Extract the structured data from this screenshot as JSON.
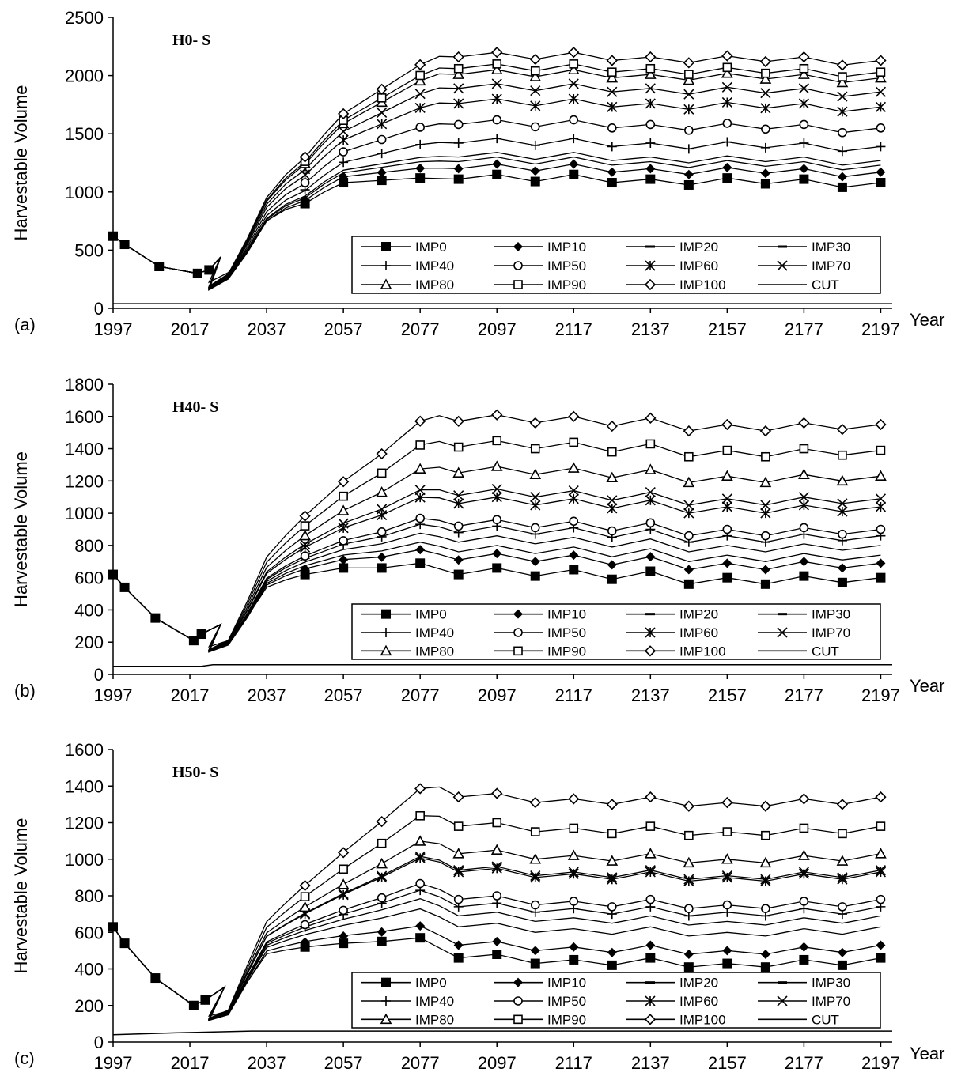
{
  "chart_data": [
    {
      "type": "line",
      "panel_label": "(a)",
      "title": "H0- S",
      "ylabel": "Harvestable Volume",
      "xlabel": "Year",
      "x_ticks": [
        "1997",
        "2017",
        "2037",
        "2057",
        "2077",
        "2097",
        "2117",
        "2137",
        "2157",
        "2177",
        "2197"
      ],
      "y_ticks": [
        "0",
        "500",
        "1000",
        "1500",
        "2000",
        "2500"
      ],
      "xlim": [
        1997,
        2200
      ],
      "ylim": [
        0,
        2500
      ],
      "legend": {
        "position": "bottom-right",
        "columns": 4
      },
      "series": [
        {
          "name": "IMP0",
          "marker": "filled-square",
          "final": 1080
        },
        {
          "name": "IMP10",
          "marker": "filled-diamond",
          "final": 1170
        },
        {
          "name": "IMP20",
          "marker": "dash",
          "final": 1230
        },
        {
          "name": "IMP30",
          "marker": "dash",
          "final": 1270
        },
        {
          "name": "IMP40",
          "marker": "plus",
          "final": 1390
        },
        {
          "name": "IMP50",
          "marker": "open-circle",
          "final": 1550
        },
        {
          "name": "IMP60",
          "marker": "asterisk",
          "final": 1730
        },
        {
          "name": "IMP70",
          "marker": "x",
          "final": 1860
        },
        {
          "name": "IMP80",
          "marker": "open-triangle",
          "final": 1980
        },
        {
          "name": "IMP90",
          "marker": "open-square",
          "final": 2030
        },
        {
          "name": "IMP100",
          "marker": "open-diamond",
          "final": 2130
        },
        {
          "name": "CUT",
          "marker": "none",
          "final": 40
        }
      ],
      "base": {
        "x": [
          1997,
          2000,
          2009,
          2019,
          2022,
          2025,
          2030
        ],
        "y": [
          620,
          550,
          360,
          300,
          330,
          440,
          600
        ]
      },
      "imp0": {
        "x": [
          2020,
          2025,
          2030,
          2035,
          2040,
          2047,
          2052,
          2057,
          2067,
          2077,
          2087,
          2097,
          2107,
          2117,
          2127,
          2137,
          2147,
          2157,
          2167,
          2177,
          2187,
          2197
        ],
        "y": [
          200,
          260,
          380,
          700,
          830,
          900,
          1000,
          1080,
          1100,
          1120,
          1110,
          1150,
          1090,
          1150,
          1080,
          1110,
          1060,
          1120,
          1070,
          1110,
          1040,
          1080
        ]
      },
      "cut": {
        "x": [
          1997,
          2200
        ],
        "y": [
          40,
          40
        ]
      }
    },
    {
      "type": "line",
      "panel_label": "(b)",
      "title": "H40- S",
      "ylabel": "Harvestable Volume",
      "xlabel": "Year",
      "x_ticks": [
        "1997",
        "2017",
        "2037",
        "2057",
        "2077",
        "2097",
        "2117",
        "2137",
        "2157",
        "2177",
        "2197"
      ],
      "y_ticks": [
        "0",
        "200",
        "400",
        "600",
        "800",
        "1000",
        "1200",
        "1400",
        "1600",
        "1800"
      ],
      "xlim": [
        1997,
        2200
      ],
      "ylim": [
        0,
        1800
      ],
      "legend": {
        "position": "bottom-right",
        "columns": 4
      },
      "series": [
        {
          "name": "IMP0",
          "marker": "filled-square",
          "final": 600
        },
        {
          "name": "IMP10",
          "marker": "filled-diamond",
          "final": 690
        },
        {
          "name": "IMP20",
          "marker": "dash",
          "final": 740
        },
        {
          "name": "IMP30",
          "marker": "dash",
          "final": 800
        },
        {
          "name": "IMP40",
          "marker": "plus",
          "final": 860
        },
        {
          "name": "IMP50",
          "marker": "open-circle",
          "final": 900
        },
        {
          "name": "IMP60",
          "marker": "asterisk",
          "final": 1040
        },
        {
          "name": "IMP70",
          "marker": "x",
          "final": 1090
        },
        {
          "name": "IMP80",
          "marker": "open-triangle",
          "final": 1230
        },
        {
          "name": "IMP90",
          "marker": "open-square",
          "final": 1390
        },
        {
          "name": "IMP100",
          "marker": "open-diamond",
          "final": 1550
        },
        {
          "name": "CUT",
          "marker": "none",
          "final": 60
        }
      ],
      "base": {
        "x": [
          1997,
          2000,
          2008,
          2018,
          2020,
          2025,
          2030
        ],
        "y": [
          620,
          540,
          350,
          210,
          250,
          310,
          430
        ]
      },
      "imp0": {
        "x": [
          2020,
          2025,
          2030,
          2034,
          2038,
          2047,
          2057,
          2067,
          2077,
          2087,
          2097,
          2107,
          2117,
          2127,
          2137,
          2147,
          2157,
          2167,
          2177,
          2187,
          2197
        ],
        "y": [
          160,
          190,
          240,
          480,
          560,
          620,
          660,
          660,
          690,
          620,
          660,
          610,
          650,
          590,
          640,
          560,
          600,
          560,
          610,
          570,
          600
        ]
      },
      "cut": {
        "x": [
          1997,
          2020,
          2023,
          2200
        ],
        "y": [
          50,
          50,
          60,
          60
        ]
      }
    },
    {
      "type": "line",
      "panel_label": "(c)",
      "title": "H50- S",
      "ylabel": "Harvestable Volume",
      "xlabel": "Year",
      "x_ticks": [
        "1997",
        "2017",
        "2037",
        "2057",
        "2077",
        "2097",
        "2117",
        "2137",
        "2157",
        "2177",
        "2197"
      ],
      "y_ticks": [
        "0",
        "200",
        "400",
        "600",
        "800",
        "1000",
        "1200",
        "1400",
        "1600"
      ],
      "xlim": [
        1997,
        2200
      ],
      "ylim": [
        0,
        1600
      ],
      "legend": {
        "position": "bottom-right",
        "columns": 4
      },
      "series": [
        {
          "name": "IMP0",
          "marker": "filled-square",
          "final": 460
        },
        {
          "name": "IMP10",
          "marker": "filled-diamond",
          "final": 530
        },
        {
          "name": "IMP20",
          "marker": "dash",
          "final": 630
        },
        {
          "name": "IMP30",
          "marker": "dash",
          "final": 690
        },
        {
          "name": "IMP40",
          "marker": "plus",
          "final": 740
        },
        {
          "name": "IMP50",
          "marker": "open-circle",
          "final": 780
        },
        {
          "name": "IMP60",
          "marker": "asterisk",
          "final": 930
        },
        {
          "name": "IMP70",
          "marker": "x",
          "final": 940
        },
        {
          "name": "IMP80",
          "marker": "open-triangle",
          "final": 1030
        },
        {
          "name": "IMP90",
          "marker": "open-square",
          "final": 1180
        },
        {
          "name": "IMP100",
          "marker": "open-diamond",
          "final": 1340
        },
        {
          "name": "CUT",
          "marker": "none",
          "final": 60
        }
      ],
      "base": {
        "x": [
          1997,
          2000,
          2008,
          2018,
          2021,
          2026,
          2030
        ],
        "y": [
          630,
          540,
          350,
          200,
          230,
          300,
          420
        ]
      },
      "imp0": {
        "x": [
          2021,
          2025,
          2030,
          2034,
          2038,
          2047,
          2057,
          2067,
          2077,
          2087,
          2097,
          2107,
          2117,
          2127,
          2137,
          2147,
          2157,
          2167,
          2177,
          2187,
          2197
        ],
        "y": [
          140,
          150,
          200,
          460,
          490,
          520,
          540,
          550,
          570,
          460,
          480,
          430,
          450,
          420,
          460,
          410,
          430,
          410,
          450,
          420,
          460
        ]
      },
      "cut": {
        "x": [
          1997,
          2013,
          2033,
          2200
        ],
        "y": [
          40,
          50,
          60,
          60
        ]
      }
    }
  ]
}
